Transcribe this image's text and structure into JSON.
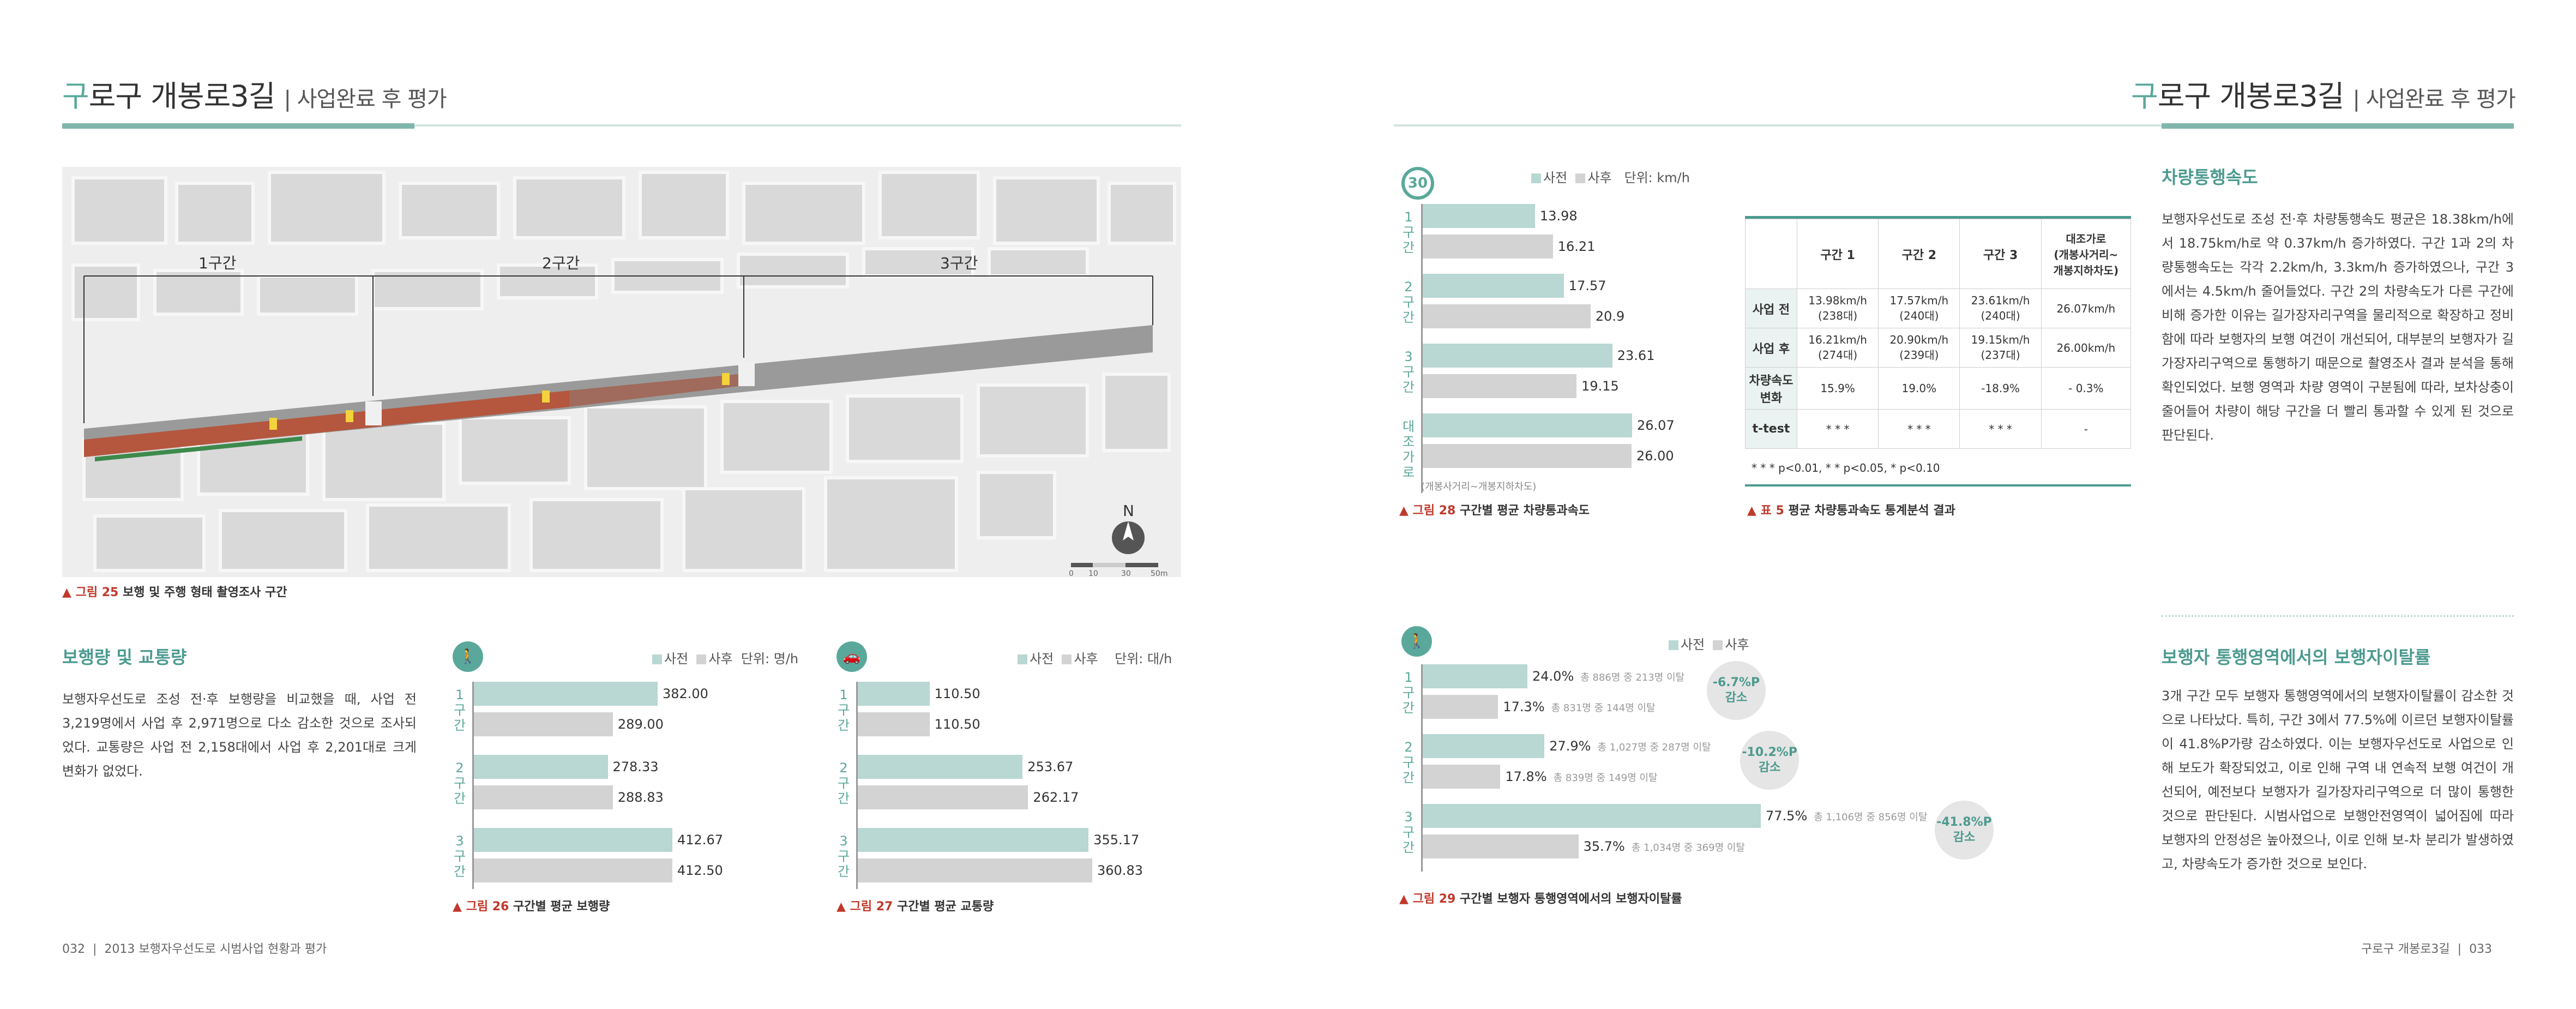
{
  "header": {
    "title_first": "구",
    "title_rest": "로구 개봉로3길",
    "subtitle": "| 사업완료 후 평가"
  },
  "map": {
    "section_labels": [
      "1구간",
      "2구간",
      "3구간"
    ],
    "north": "N",
    "scale_labels": [
      "0",
      "10",
      "30",
      "50m"
    ]
  },
  "fig25": {
    "prefix": "▲ 그림 25",
    "title": "보행 및 주행 형태 촬영조사 구간"
  },
  "left_section": {
    "title": "보행량 및 교통량",
    "body": "보행자우선도로 조성 전·후 보행량을 비교했을 때, 사업 전 3,219명에서 사업 후 2,971명으로 다소 감소한 것으로 조사되었다. 교통량은 사업 전 2,158대에서 사업 후 2,201대로 크게 변화가 없었다."
  },
  "legend": {
    "pre": "사전",
    "post": "사후"
  },
  "fig26": {
    "unit": "단위: 명/h",
    "icon": "pedestrian-icon",
    "prefix": "▲ 그림 26",
    "title": "구간별 평균 보행량",
    "groups": [
      {
        "label": "1\n구\n간",
        "pre": "382.00",
        "post": "289.00"
      },
      {
        "label": "2\n구\n간",
        "pre": "278.33",
        "post": "288.83"
      },
      {
        "label": "3\n구\n간",
        "pre": "412.67",
        "post": "412.50"
      }
    ]
  },
  "fig27": {
    "unit": "단위: 대/h",
    "icon": "car-icon",
    "prefix": "▲ 그림 27",
    "title": "구간별 평균 교통량",
    "groups": [
      {
        "label": "1\n구\n간",
        "pre": "110.50",
        "post": "110.50"
      },
      {
        "label": "2\n구\n간",
        "pre": "253.67",
        "post": "262.17"
      },
      {
        "label": "3\n구\n간",
        "pre": "355.17",
        "post": "360.83"
      }
    ]
  },
  "fig28": {
    "unit": "단위: km/h",
    "icon_text": "30",
    "prefix": "▲ 그림 28",
    "title": "구간별 평균 차량통과속도",
    "groups": [
      {
        "label": "1\n구\n간",
        "pre": "13.98",
        "post": "16.21"
      },
      {
        "label": "2\n구\n간",
        "pre": "17.57",
        "post": "20.9"
      },
      {
        "label": "3\n구\n간",
        "pre": "23.61",
        "post": "19.15"
      },
      {
        "label": "대\n조\n가\n로",
        "pre": "26.07",
        "post": "26.00"
      }
    ],
    "control_note": "(개봉사거리~개봉지하차도)"
  },
  "table5": {
    "prefix": "▲ 표 5",
    "title": "평균 차량통과속도 통계분석 결과",
    "headers": [
      "",
      "구간 1",
      "구간 2",
      "구간 3",
      "대조가로\n(개봉사거리~\n개봉지하차도)"
    ],
    "rows": [
      {
        "label": "사업 전",
        "c1": "13.98km/h\n(238대)",
        "c2": "17.57km/h\n(240대)",
        "c3": "23.61km/h\n(240대)",
        "c4": "26.07km/h"
      },
      {
        "label": "사업 후",
        "c1": "16.21km/h\n(274대)",
        "c2": "20.90km/h\n(239대)",
        "c3": "19.15km/h\n(237대)",
        "c4": "26.00km/h"
      },
      {
        "label": "차량속도\n변화",
        "c1": "15.9%",
        "c2": "19.0%",
        "c3": "-18.9%",
        "c4": "- 0.3%"
      },
      {
        "label": "t-test",
        "c1": "* * *",
        "c2": "* * *",
        "c3": "* * *",
        "c4": "-"
      }
    ],
    "note": "* * * p<0.01,  * * p<0.05,  * p<0.10"
  },
  "speed_section": {
    "title": "차량통행속도",
    "body": "보행자우선도로 조성 전·후 차량통행속도 평균은 18.38km/h에서 18.75km/h로 약 0.37km/h 증가하였다. 구간 1과 2의 차량통행속도는 각각 2.2km/h, 3.3km/h 증가하였으나, 구간 3에서는 4.5km/h 줄어들었다. 구간 2의 차량속도가 다른 구간에 비해 증가한 이유는 길가장자리구역을 물리적으로 확장하고 정비함에 따라 보행자의 보행 여건이 개선되어, 대부분의 보행자가 길가장자리구역으로 통행하기 때문으로 촬영조사 결과 분석을 통해 확인되었다. 보행 영역과 차량 영역이 구분됨에 따라, 보차상충이 줄어들어 차량이 해당 구간을 더 빨리 통과할 수 있게 된 것으로 판단된다."
  },
  "fig29": {
    "icon": "walk-away-icon",
    "prefix": "▲ 그림 29",
    "title": "구간별 보행자 통행영역에서의 보행자이탈률",
    "groups": [
      {
        "label": "1\n구\n간",
        "pre": "24.0%",
        "pre_note": "총 886명 중 213명 이탈",
        "post": "17.3%",
        "post_note": "총 831명 중 144명 이탈",
        "change": "-6.7%P",
        "change_word": "감소"
      },
      {
        "label": "2\n구\n간",
        "pre": "27.9%",
        "pre_note": "총 1,027명 중 287명 이탈",
        "post": "17.8%",
        "post_note": "총 839명 중 149명 이탈",
        "change": "-10.2%P",
        "change_word": "감소"
      },
      {
        "label": "3\n구\n간",
        "pre": "77.5%",
        "pre_note": "총 1,106명 중 856명 이탈",
        "post": "35.7%",
        "post_note": "총 1,034명 중 369명 이탈",
        "change": "-41.8%P",
        "change_word": "감소"
      }
    ]
  },
  "deviation_section": {
    "title": "보행자 통행영역에서의 보행자이탈률",
    "body": "3개 구간 모두 보행자 통행영역에서의 보행자이탈률이 감소한 것으로 나타났다. 특히, 구간 3에서 77.5%에 이르던 보행자이탈률이 41.8%P가량 감소하였다. 이는 보행자우선도로 사업으로 인해 보도가 확장되었고, 이로 인해 구역 내 연속적 보행 여건이 개선되어, 예전보다 보행자가 길가장자리구역으로 더 많이 통행한 것으로 판단된다. 시범사업으로 보행안전영역이 넓어짐에 따라 보행자의 안정성은 높아졌으나, 이로 인해 보-차 분리가 발생하였고, 차량속도가 증가한 것으로 보인다."
  },
  "chart_data": [
    {
      "type": "bar",
      "title": "구간별 평균 보행량",
      "ylabel": "단위: 명/h",
      "categories": [
        "1구간",
        "2구간",
        "3구간"
      ],
      "series": [
        {
          "name": "사전",
          "values": [
            382.0,
            278.33,
            412.67
          ]
        },
        {
          "name": "사후",
          "values": [
            289.0,
            288.83,
            412.5
          ]
        }
      ]
    },
    {
      "type": "bar",
      "title": "구간별 평균 교통량",
      "ylabel": "단위: 대/h",
      "categories": [
        "1구간",
        "2구간",
        "3구간"
      ],
      "series": [
        {
          "name": "사전",
          "values": [
            110.5,
            253.67,
            355.17
          ]
        },
        {
          "name": "사후",
          "values": [
            110.5,
            262.17,
            360.83
          ]
        }
      ]
    },
    {
      "type": "bar",
      "title": "구간별 평균 차량통과속도",
      "ylabel": "단위: km/h",
      "categories": [
        "1구간",
        "2구간",
        "3구간",
        "대조가로"
      ],
      "series": [
        {
          "name": "사전",
          "values": [
            13.98,
            17.57,
            23.61,
            26.07
          ]
        },
        {
          "name": "사후",
          "values": [
            16.21,
            20.9,
            19.15,
            26.0
          ]
        }
      ]
    },
    {
      "type": "bar",
      "title": "구간별 보행자 통행영역에서의 보행자이탈률",
      "categories": [
        "1구간",
        "2구간",
        "3구간"
      ],
      "series": [
        {
          "name": "사전",
          "values": [
            24.0,
            27.9,
            77.5
          ]
        },
        {
          "name": "사후",
          "values": [
            17.3,
            17.8,
            35.7
          ]
        }
      ]
    }
  ],
  "footer": {
    "left_page": "032",
    "left_text": "2013 보행자우선도로 시범사업 현황과 평가",
    "right_text": "구로구 개봉로3길",
    "right_page": "033"
  },
  "colors": {
    "accent": "#5aa89b",
    "pre_bar": "#b9d7d3",
    "post_bar": "#d3d3d3",
    "caption_red": "#c0392b"
  }
}
